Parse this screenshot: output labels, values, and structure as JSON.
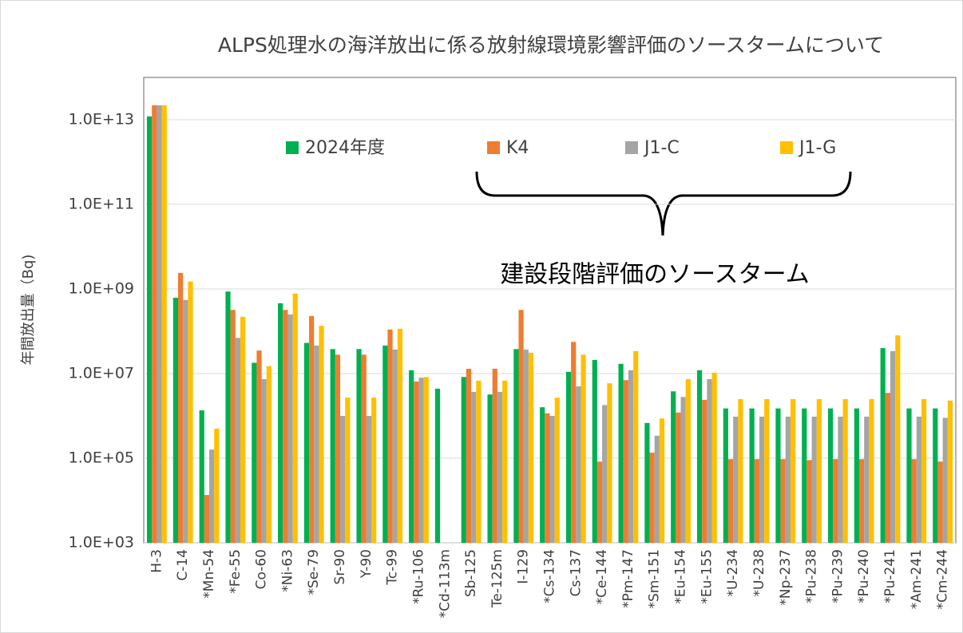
{
  "chart_data": {
    "type": "bar",
    "title": "ALPS処理水の海洋放出に係る放射線環境影響評価のソースタームについて",
    "ylabel": "年間放出量（Bq)",
    "annotation": "建設段階評価のソースターム",
    "log_scale": true,
    "grid": true,
    "legend": "top",
    "ylim": [
      1000,
      100000000000000
    ],
    "yticks": [
      {
        "value": 1000,
        "label": "1.0E+03"
      },
      {
        "value": 100000,
        "label": "1.0E+05"
      },
      {
        "value": 10000000,
        "label": "1.0E+07"
      },
      {
        "value": 1000000000,
        "label": "1.0E+09"
      },
      {
        "value": 100000000000,
        "label": "1.0E+11"
      },
      {
        "value": 10000000000000,
        "label": "1.0E+13"
      }
    ],
    "categories": [
      "H-3",
      "C-14",
      "*Mn-54",
      "*Fe-55",
      "Co-60",
      "*Ni-63",
      "*Se-79",
      "Sr-90",
      "Y-90",
      "Tc-99",
      "*Ru-106",
      "*Cd-113m",
      "Sb-125",
      "Te-125m",
      "I-129",
      "*Cs-134",
      "Cs-137",
      "*Ce-144",
      "*Pm-147",
      "*Sm-151",
      "*Eu-154",
      "*Eu-155",
      "*U-234",
      "*U-238",
      "*Np-237",
      "*Pu-238",
      "*Pu-239",
      "*Pu-240",
      "*Pu-241",
      "*Am-241",
      "*Cm-244"
    ],
    "series": [
      {
        "name": "2024年度",
        "color": "#00b050",
        "values": [
          12000000000000,
          620000000,
          1350000,
          870000000,
          18000000,
          460000000,
          53000000,
          38000000,
          38000000,
          46000000,
          12000000,
          4400000,
          8300000,
          3200000,
          38000000,
          1600000,
          11000000,
          21000000,
          17000000,
          680000,
          3800000,
          12000000,
          1500000,
          1500000,
          1500000,
          1500000,
          1500000,
          1500000,
          40000000,
          1500000,
          1500000
        ]
      },
      {
        "name": "K4",
        "color": "#ed7d31",
        "values": [
          22000000000000,
          2400000000,
          13500,
          320000000,
          35000000,
          320000000,
          230000000,
          28000000,
          28000000,
          110000000,
          6500000,
          null,
          13000000,
          13000000,
          320000000,
          1150000,
          56000000,
          83000,
          7000000,
          135000,
          1200000,
          2400000,
          95000,
          95000,
          95000,
          90000,
          95000,
          95000,
          3500000,
          95000,
          83000
        ]
      },
      {
        "name": "J1-C",
        "color": "#a5a5a5",
        "values": [
          22000000000000,
          550000000,
          160000,
          70000000,
          7400000,
          250000000,
          46000000,
          1000000,
          1000000,
          37000000,
          8000000,
          null,
          3700000,
          3700000,
          37000000,
          1000000,
          5000000,
          1800000,
          12000000,
          340000,
          2800000,
          7400000,
          960000,
          960000,
          960000,
          960000,
          960000,
          960000,
          34000000,
          960000,
          900000
        ]
      },
      {
        "name": "J1-G",
        "color": "#ffc000",
        "values": [
          22000000000000,
          1500000000,
          500000,
          220000000,
          15000000,
          780000000,
          135000000,
          2700000,
          2700000,
          115000000,
          8300000,
          null,
          6800000,
          6800000,
          31000000,
          2700000,
          28000000,
          5900000,
          34000000,
          870000,
          7400000,
          10500000,
          2500000,
          2500000,
          2500000,
          2500000,
          2500000,
          2500000,
          80000000,
          2500000,
          2300000
        ]
      }
    ]
  }
}
